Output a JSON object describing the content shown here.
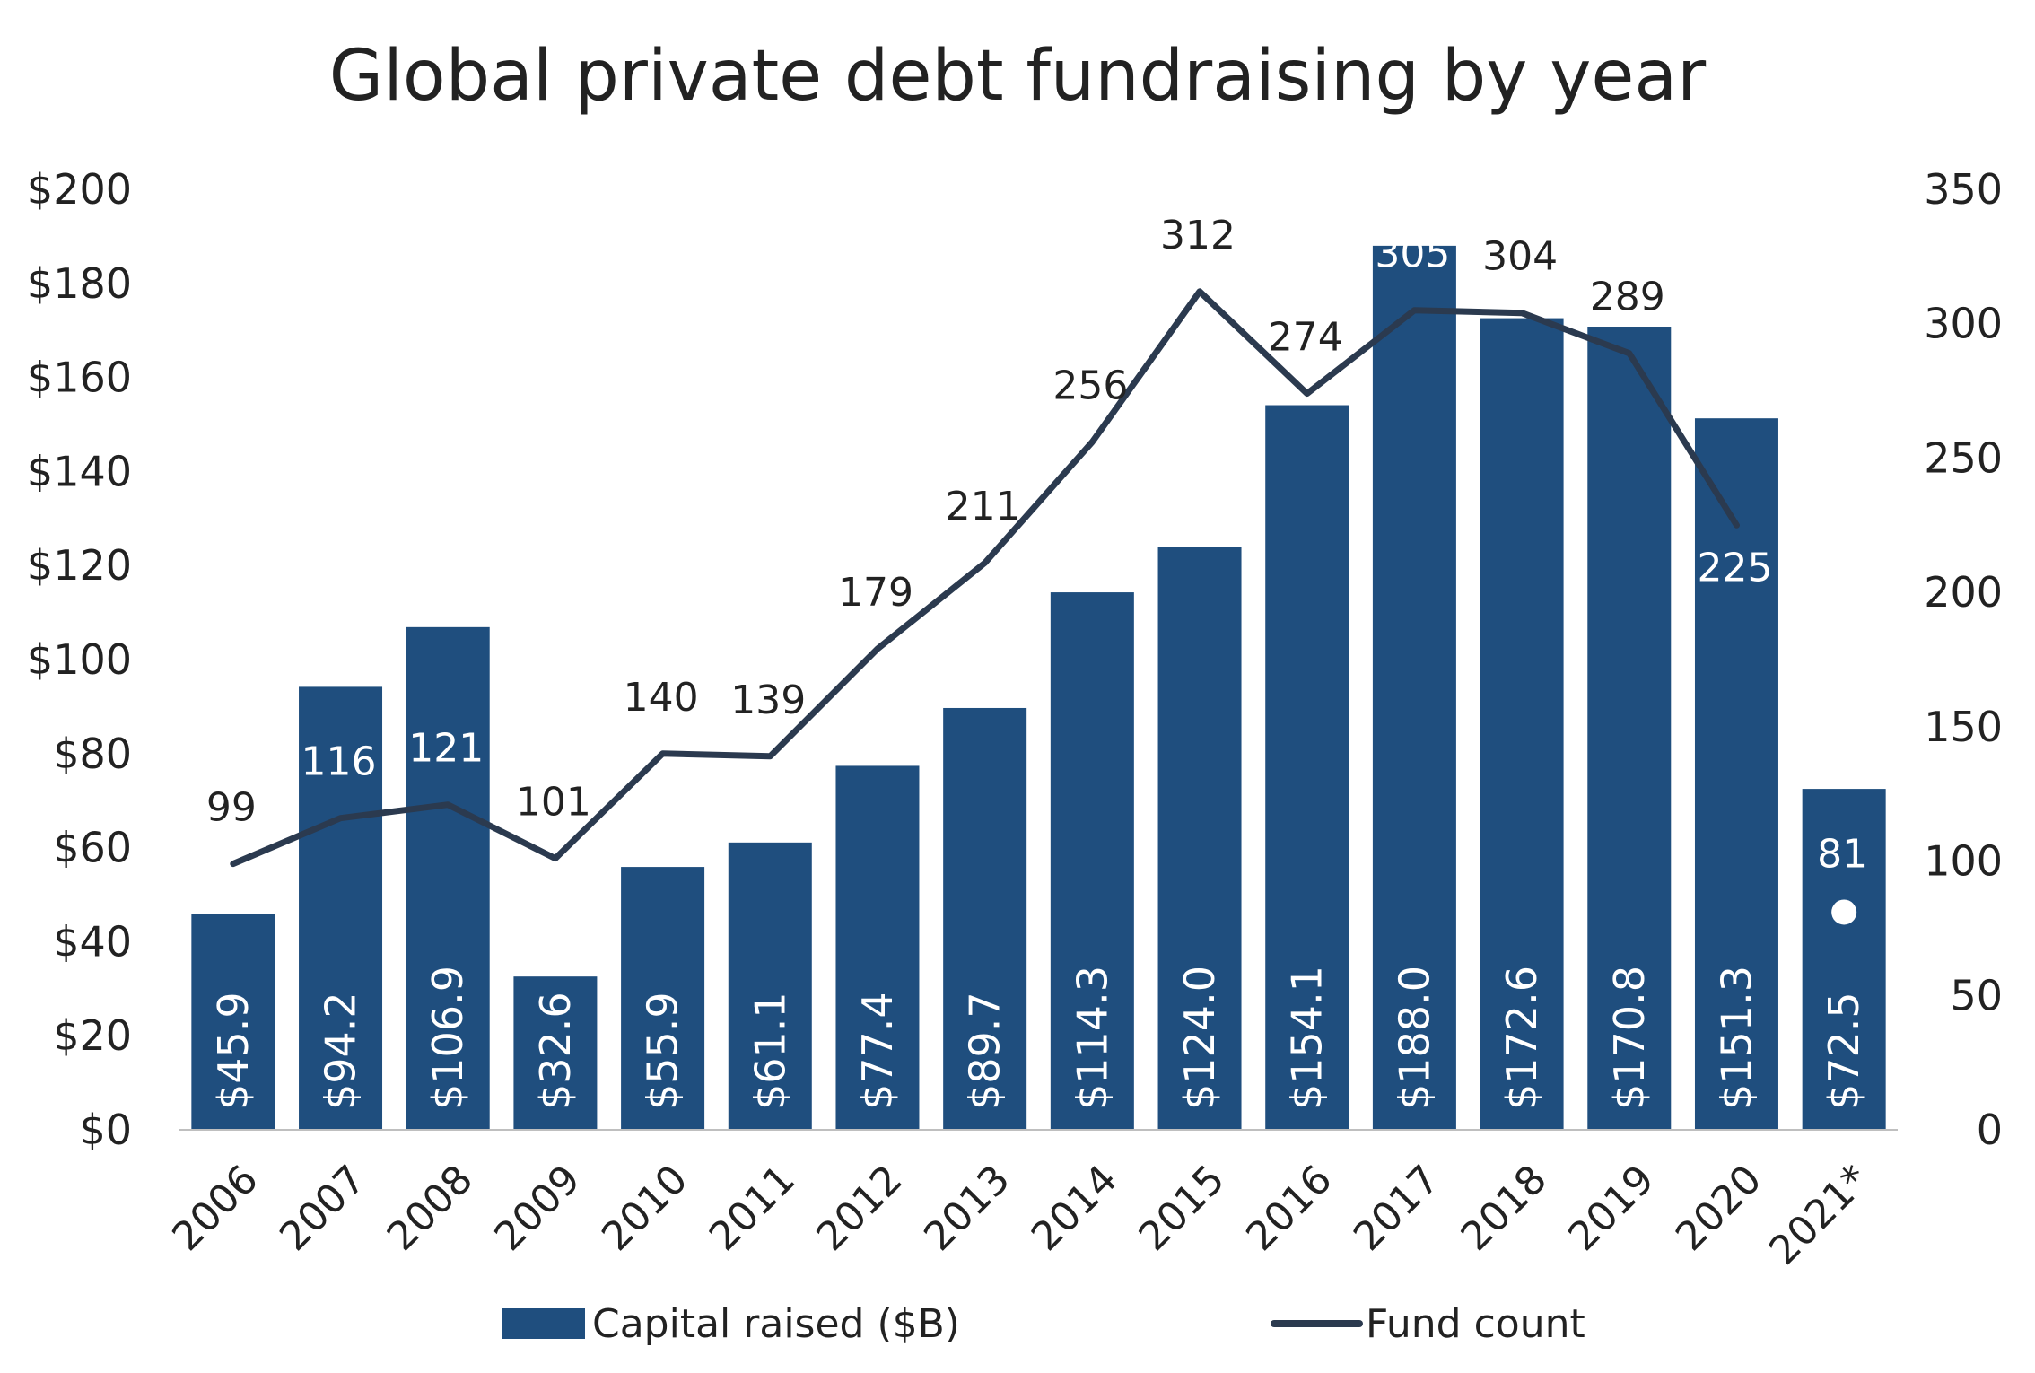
{
  "chart_data": {
    "type": "bar",
    "title": "Global private debt fundraising by year",
    "categories": [
      "2006",
      "2007",
      "2008",
      "2009",
      "2010",
      "2011",
      "2012",
      "2013",
      "2014",
      "2015",
      "2016",
      "2017",
      "2018",
      "2019",
      "2020",
      "2021*"
    ],
    "series": [
      {
        "name": "Capital raised ($B)",
        "type": "bar",
        "axis": "left",
        "color": "#1f4e7e",
        "values": [
          45.9,
          94.2,
          106.9,
          32.6,
          55.9,
          61.1,
          77.4,
          89.7,
          114.3,
          124.0,
          154.1,
          188.0,
          172.6,
          170.8,
          151.3,
          72.5
        ],
        "labels": [
          "$45.9",
          "$94.2",
          "$106.9",
          "$32.6",
          "$55.9",
          "$61.1",
          "$77.4",
          "$89.7",
          "$114.3",
          "$124.0",
          "$154.1",
          "$188.0",
          "$172.6",
          "$170.8",
          "$151.3",
          "$72.5"
        ]
      },
      {
        "name": "Fund count",
        "type": "line",
        "axis": "right",
        "color": "#2b3a4f",
        "values": [
          99,
          116,
          121,
          101,
          140,
          139,
          179,
          211,
          256,
          312,
          274,
          305,
          304,
          289,
          225,
          81
        ],
        "line_through_index": 14,
        "point_marker_index": 15,
        "labels": [
          "99",
          "116",
          "121",
          "101",
          "140",
          "139",
          "179",
          "211",
          "256",
          "312",
          "274",
          "305",
          "304",
          "289",
          "225",
          "81"
        ]
      }
    ],
    "y_left": {
      "min": 0,
      "max": 200,
      "step": 20,
      "ticks": [
        "$0",
        "$20",
        "$40",
        "$60",
        "$80",
        "$100",
        "$120",
        "$140",
        "$160",
        "$180",
        "$200"
      ]
    },
    "y_right": {
      "min": 0,
      "max": 350,
      "step": 50,
      "ticks": [
        "0",
        "50",
        "100",
        "150",
        "200",
        "250",
        "300",
        "350"
      ]
    },
    "grid": false,
    "legend_position": "bottom"
  }
}
